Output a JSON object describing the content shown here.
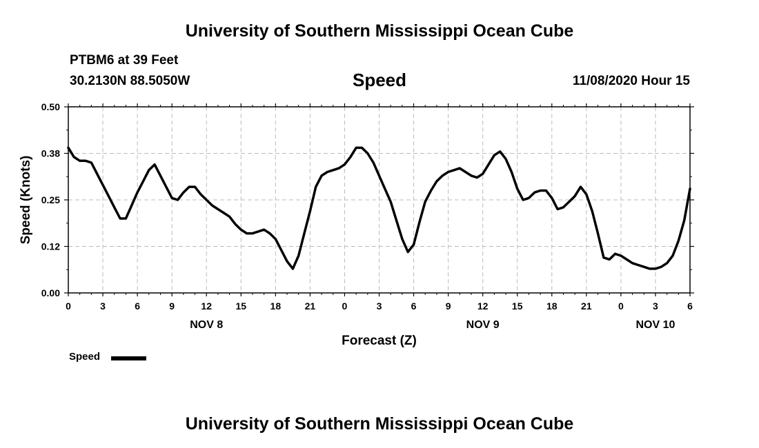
{
  "header": {
    "title": "University of Southern Mississippi Ocean Cube",
    "station": "PTBM6 at 39 Feet",
    "coords": "30.2130N 88.5050W",
    "variable": "Speed",
    "datetime": "11/08/2020 Hour 15",
    "footer_title": "University of Southern Mississippi Ocean Cube"
  },
  "legend": {
    "label": "Speed"
  },
  "chart_data": {
    "type": "line",
    "title": "Speed",
    "xlabel": "Forecast (Z)",
    "ylabel": "Speed (Knots)",
    "ylim": [
      0,
      0.5
    ],
    "yticks": [
      "0.00",
      "0.12",
      "0.25",
      "0.38",
      "0.50"
    ],
    "xlim": [
      0,
      54
    ],
    "xtick_positions": [
      0,
      3,
      6,
      9,
      12,
      15,
      18,
      21,
      24,
      27,
      30,
      33,
      36,
      39,
      42,
      45,
      48,
      51,
      54
    ],
    "xtick_labels": [
      "0",
      "3",
      "6",
      "9",
      "12",
      "15",
      "18",
      "21",
      "0",
      "3",
      "6",
      "9",
      "12",
      "15",
      "18",
      "21",
      "0",
      "3",
      "6"
    ],
    "day_label_positions": [
      12,
      36,
      51
    ],
    "day_labels": [
      "NOV 8",
      "NOV 9",
      "NOV 10"
    ],
    "grid": true,
    "color": "#000000",
    "series": [
      {
        "name": "Speed",
        "x": [
          0,
          0.5,
          1,
          1.5,
          2,
          2.5,
          3,
          3.5,
          4,
          4.5,
          5,
          5.5,
          6,
          6.5,
          7,
          7.5,
          8,
          8.5,
          9,
          9.5,
          10,
          10.5,
          11,
          11.5,
          12,
          12.5,
          13,
          13.5,
          14,
          14.5,
          15,
          15.5,
          16,
          16.5,
          17,
          17.5,
          18,
          18.5,
          19,
          19.5,
          20,
          20.5,
          21,
          21.5,
          22,
          22.5,
          23,
          23.5,
          24,
          24.5,
          25,
          25.5,
          26,
          26.5,
          27,
          27.5,
          28,
          28.5,
          29,
          29.5,
          30,
          30.5,
          31,
          31.5,
          32,
          32.5,
          33,
          33.5,
          34,
          34.5,
          35,
          35.5,
          36,
          36.5,
          37,
          37.5,
          38,
          38.5,
          39,
          39.5,
          40,
          40.5,
          41,
          41.5,
          42,
          42.5,
          43,
          43.5,
          44,
          44.5,
          45,
          45.5,
          46,
          46.5,
          47,
          47.5,
          48,
          48.5,
          49,
          49.5,
          50,
          50.5,
          51,
          51.5,
          52,
          52.5,
          53,
          53.5,
          54
        ],
        "values": [
          0.39,
          0.365,
          0.355,
          0.355,
          0.35,
          0.32,
          0.29,
          0.26,
          0.23,
          0.2,
          0.2,
          0.235,
          0.27,
          0.3,
          0.33,
          0.345,
          0.315,
          0.285,
          0.255,
          0.25,
          0.27,
          0.285,
          0.285,
          0.265,
          0.25,
          0.235,
          0.225,
          0.215,
          0.205,
          0.185,
          0.17,
          0.16,
          0.16,
          0.165,
          0.17,
          0.16,
          0.145,
          0.115,
          0.085,
          0.065,
          0.1,
          0.16,
          0.22,
          0.285,
          0.315,
          0.325,
          0.33,
          0.335,
          0.345,
          0.365,
          0.39,
          0.39,
          0.375,
          0.35,
          0.315,
          0.28,
          0.245,
          0.195,
          0.145,
          0.11,
          0.13,
          0.19,
          0.245,
          0.275,
          0.3,
          0.315,
          0.325,
          0.33,
          0.335,
          0.325,
          0.315,
          0.31,
          0.32,
          0.345,
          0.37,
          0.38,
          0.36,
          0.325,
          0.28,
          0.25,
          0.255,
          0.27,
          0.275,
          0.275,
          0.255,
          0.225,
          0.23,
          0.245,
          0.26,
          0.285,
          0.265,
          0.22,
          0.16,
          0.095,
          0.09,
          0.105,
          0.1,
          0.09,
          0.08,
          0.075,
          0.07,
          0.065,
          0.065,
          0.07,
          0.08,
          0.1,
          0.14,
          0.195,
          0.28
        ]
      }
    ]
  }
}
